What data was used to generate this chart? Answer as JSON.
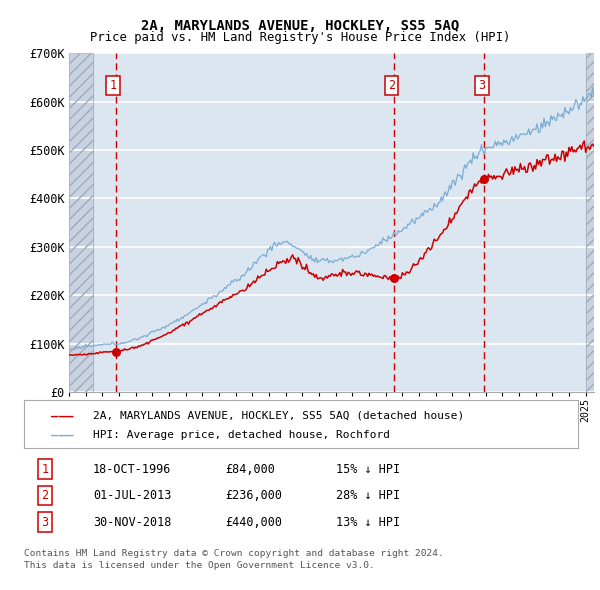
{
  "title1": "2A, MARYLANDS AVENUE, HOCKLEY, SS5 5AQ",
  "title2": "Price paid vs. HM Land Registry's House Price Index (HPI)",
  "legend_line1": "2A, MARYLANDS AVENUE, HOCKLEY, SS5 5AQ (detached house)",
  "legend_line2": "HPI: Average price, detached house, Rochford",
  "sale_color": "#cc0000",
  "hpi_color": "#7aadd4",
  "background_color": "#dce6f1",
  "grid_color": "#ffffff",
  "vline_color": "#cc0000",
  "sales": [
    {
      "label": "1",
      "date_num": 1996.79,
      "price": 84000,
      "date_str": "18-OCT-1996",
      "amount": "£84,000",
      "pct": "15% ↓ HPI"
    },
    {
      "label": "2",
      "date_num": 2013.5,
      "price": 236000,
      "date_str": "01-JUL-2013",
      "amount": "£236,000",
      "pct": "28% ↓ HPI"
    },
    {
      "label": "3",
      "date_num": 2018.92,
      "price": 440000,
      "date_str": "30-NOV-2018",
      "amount": "£440,000",
      "pct": "13% ↓ HPI"
    }
  ],
  "ylim": [
    0,
    700000
  ],
  "xlim": [
    1994.0,
    2025.5
  ],
  "footer1": "Contains HM Land Registry data © Crown copyright and database right 2024.",
  "footer2": "This data is licensed under the Open Government Licence v3.0."
}
